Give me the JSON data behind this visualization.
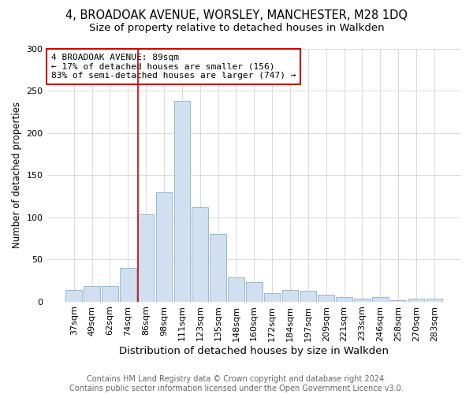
{
  "title1": "4, BROADOAK AVENUE, WORSLEY, MANCHESTER, M28 1DQ",
  "title2": "Size of property relative to detached houses in Walkden",
  "xlabel": "Distribution of detached houses by size in Walkden",
  "ylabel": "Number of detached properties",
  "footer": "Contains HM Land Registry data © Crown copyright and database right 2024.\nContains public sector information licensed under the Open Government Licence v3.0.",
  "categories": [
    "37sqm",
    "49sqm",
    "62sqm",
    "74sqm",
    "86sqm",
    "98sqm",
    "111sqm",
    "123sqm",
    "135sqm",
    "148sqm",
    "160sqm",
    "172sqm",
    "184sqm",
    "197sqm",
    "209sqm",
    "221sqm",
    "233sqm",
    "246sqm",
    "258sqm",
    "270sqm",
    "283sqm"
  ],
  "values": [
    14,
    18,
    18,
    40,
    103,
    130,
    238,
    112,
    80,
    29,
    23,
    10,
    14,
    13,
    8,
    5,
    3,
    5,
    2,
    3,
    3
  ],
  "bar_color": "#d0e0f0",
  "bar_edge_color": "#8ab0cc",
  "annotation_box_text": "4 BROADOAK AVENUE: 89sqm\n← 17% of detached houses are smaller (156)\n83% of semi-detached houses are larger (747) →",
  "annotation_box_color": "white",
  "annotation_box_edge_color": "#cc0000",
  "vline_x_index": 3.55,
  "vline_color": "#cc0000",
  "ylim": [
    0,
    300
  ],
  "yticks": [
    0,
    50,
    100,
    150,
    200,
    250,
    300
  ],
  "background_color": "#ffffff",
  "grid_color": "#cccccc",
  "title1_fontsize": 10.5,
  "title2_fontsize": 9.5,
  "xlabel_fontsize": 9.5,
  "ylabel_fontsize": 8.5,
  "tick_fontsize": 8,
  "footer_fontsize": 7
}
